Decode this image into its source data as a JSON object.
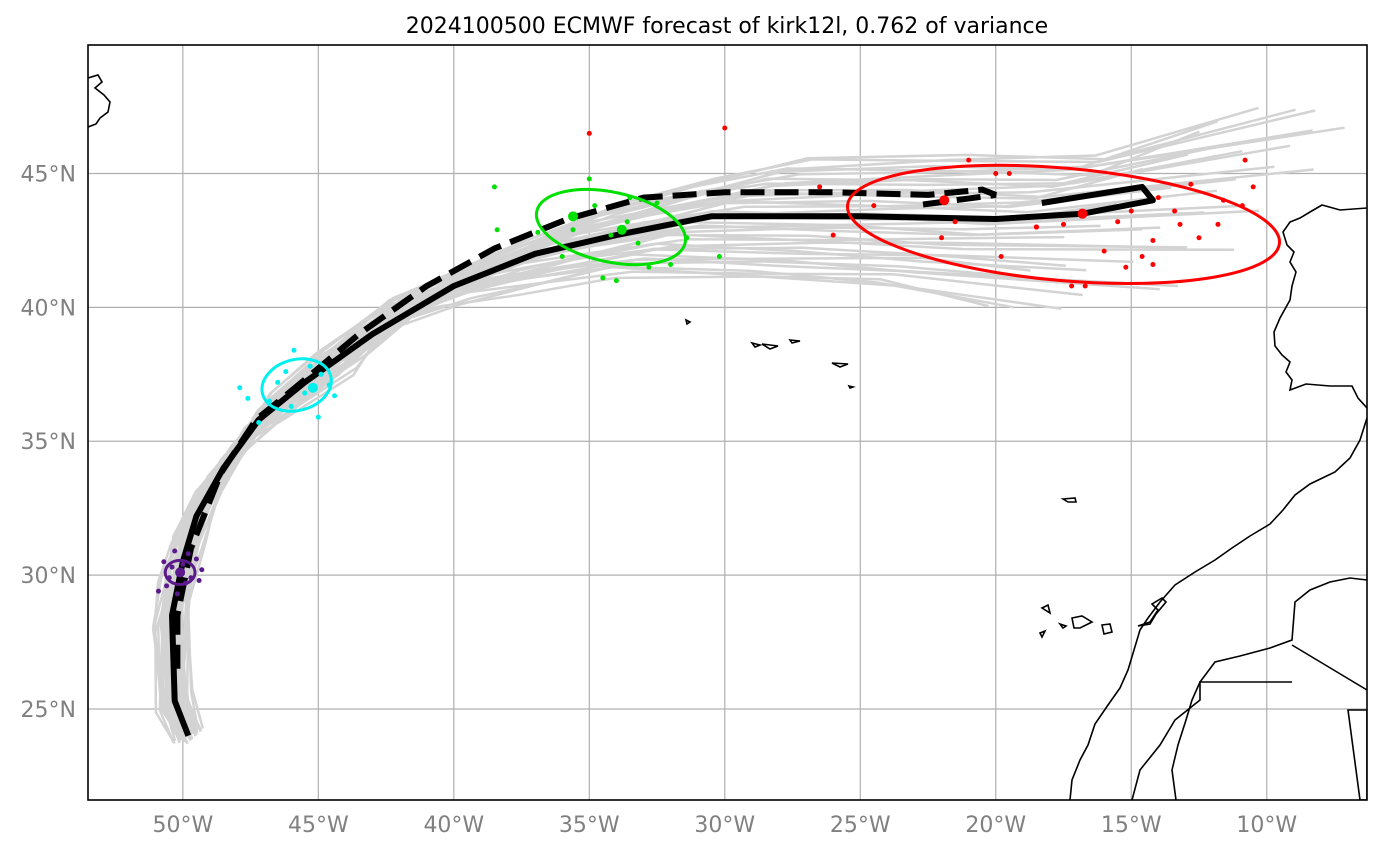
{
  "title": "2024100500 ECMWF forecast of kirk12l, 0.762 of variance",
  "map": {
    "lon_range": [
      -53.5,
      -6.3
    ],
    "lat_range": [
      21.6,
      49.8
    ],
    "lon_ticks": [
      {
        "value": -50,
        "label": "50°W"
      },
      {
        "value": -45,
        "label": "45°W"
      },
      {
        "value": -40,
        "label": "40°W"
      },
      {
        "value": -35,
        "label": "35°W"
      },
      {
        "value": -30,
        "label": "30°W"
      },
      {
        "value": -25,
        "label": "25°W"
      },
      {
        "value": -20,
        "label": "20°W"
      },
      {
        "value": -15,
        "label": "15°W"
      },
      {
        "value": -10,
        "label": "10°W"
      }
    ],
    "lat_ticks": [
      {
        "value": 45,
        "label": "45°N"
      },
      {
        "value": 40,
        "label": "40°N"
      },
      {
        "value": 35,
        "label": "35°N"
      },
      {
        "value": 30,
        "label": "30°N"
      },
      {
        "value": 25,
        "label": "25°N"
      }
    ],
    "colors": {
      "ensemble": "#d3d3d3",
      "t0": "#5a1a8c",
      "t1": "#00f0f0",
      "t2": "#00e000",
      "t3": "#ff0000",
      "track": "#000000"
    },
    "main_track": [
      [
        -49.8,
        24.0
      ],
      [
        -50.3,
        25.3
      ],
      [
        -50.4,
        28.5
      ],
      [
        -50.0,
        30.5
      ],
      [
        -49.5,
        32.2
      ],
      [
        -48.5,
        34.0
      ],
      [
        -47.2,
        35.8
      ],
      [
        -45.5,
        37.2
      ],
      [
        -43.0,
        39.0
      ],
      [
        -40.0,
        40.8
      ],
      [
        -37.0,
        42.0
      ],
      [
        -34.0,
        42.7
      ],
      [
        -30.5,
        43.4
      ],
      [
        -25.0,
        43.4
      ],
      [
        -20.0,
        43.3
      ],
      [
        -16.8,
        43.5
      ],
      [
        -14.2,
        44.0
      ],
      [
        -14.6,
        44.5
      ],
      [
        -18.3,
        43.9
      ]
    ],
    "mean_track": [
      [
        -50.2,
        26.5
      ],
      [
        -50.2,
        28.5
      ],
      [
        -49.7,
        31.0
      ],
      [
        -48.6,
        33.8
      ],
      [
        -47.3,
        35.8
      ],
      [
        -45.5,
        37.3
      ],
      [
        -43.5,
        39.0
      ],
      [
        -41.0,
        40.8
      ],
      [
        -38.5,
        42.2
      ],
      [
        -35.8,
        43.3
      ],
      [
        -33.0,
        44.1
      ],
      [
        -30.0,
        44.3
      ],
      [
        -26.0,
        44.3
      ],
      [
        -22.5,
        44.2
      ],
      [
        -20.5,
        44.4
      ],
      [
        -20.0,
        44.2
      ],
      [
        -23.0,
        43.8
      ]
    ],
    "ellipses": [
      {
        "lon": -50.1,
        "lat": 30.1,
        "rx": 0.55,
        "ry": 0.45,
        "angle": 0,
        "color": "#5a1a8c"
      },
      {
        "lon": -45.8,
        "lat": 37.1,
        "rx": 1.3,
        "ry": 0.95,
        "angle": -15,
        "color": "#00f0f0"
      },
      {
        "lon": -34.2,
        "lat": 43.0,
        "rx": 2.8,
        "ry": 1.3,
        "angle": 12,
        "color": "#00e000"
      },
      {
        "lon": -17.5,
        "lat": 43.1,
        "rx": 8.0,
        "ry": 2.1,
        "angle": 5,
        "color": "#ff0000"
      }
    ],
    "markers": [
      {
        "lon": -50.1,
        "lat": 30.1,
        "color": "#5a1a8c"
      },
      {
        "lon": -45.2,
        "lat": 37.0,
        "color": "#00f0f0"
      },
      {
        "lon": -35.6,
        "lat": 43.4,
        "color": "#00e000"
      },
      {
        "lon": -33.8,
        "lat": 42.9,
        "color": "#00e000"
      },
      {
        "lon": -21.9,
        "lat": 44.0,
        "color": "#ff0000"
      },
      {
        "lon": -16.8,
        "lat": 43.5,
        "color": "#ff0000"
      }
    ],
    "scatter": {
      "t0": [
        [
          -50.4,
          30.3
        ],
        [
          -49.7,
          29.9
        ],
        [
          -50.6,
          29.6
        ],
        [
          -49.5,
          30.6
        ],
        [
          -50.9,
          29.4
        ],
        [
          -49.8,
          30.8
        ],
        [
          -50.2,
          29.3
        ],
        [
          -49.3,
          30.2
        ],
        [
          -50.7,
          30.5
        ],
        [
          -49.9,
          29.7
        ],
        [
          -50.3,
          30.9
        ],
        [
          -49.4,
          29.8
        ],
        [
          -50.5,
          29.9
        ],
        [
          -50.0,
          30.4
        ]
      ],
      "t1": [
        [
          -47.9,
          37.0
        ],
        [
          -47.2,
          35.7
        ],
        [
          -46.8,
          36.5
        ],
        [
          -45.9,
          38.4
        ],
        [
          -45.0,
          35.9
        ],
        [
          -44.4,
          36.7
        ],
        [
          -46.2,
          37.6
        ],
        [
          -45.5,
          36.8
        ],
        [
          -46.5,
          37.2
        ],
        [
          -44.9,
          37.5
        ],
        [
          -47.6,
          36.6
        ],
        [
          -45.3,
          37.8
        ],
        [
          -46.0,
          36.3
        ],
        [
          -44.6,
          37.1
        ]
      ],
      "t2": [
        [
          -38.5,
          44.5
        ],
        [
          -35.0,
          44.8
        ],
        [
          -38.4,
          42.9
        ],
        [
          -36.0,
          41.9
        ],
        [
          -34.5,
          41.1
        ],
        [
          -34.0,
          41.0
        ],
        [
          -32.0,
          41.6
        ],
        [
          -30.2,
          41.9
        ],
        [
          -32.5,
          43.9
        ],
        [
          -33.5,
          44.1
        ],
        [
          -35.6,
          42.9
        ],
        [
          -34.8,
          43.8
        ],
        [
          -33.2,
          42.4
        ],
        [
          -32.8,
          41.5
        ],
        [
          -33.6,
          43.2
        ],
        [
          -34.2,
          42.7
        ],
        [
          -31.4,
          42.6
        ],
        [
          -36.9,
          42.8
        ]
      ],
      "t3": [
        [
          -35.0,
          46.5
        ],
        [
          -30.0,
          46.7
        ],
        [
          -26.5,
          44.5
        ],
        [
          -26.0,
          42.7
        ],
        [
          -24.5,
          43.8
        ],
        [
          -21.0,
          45.5
        ],
        [
          -20.0,
          45.0
        ],
        [
          -19.5,
          45.0
        ],
        [
          -19.8,
          41.9
        ],
        [
          -18.5,
          43.0
        ],
        [
          -17.2,
          40.8
        ],
        [
          -16.0,
          42.1
        ],
        [
          -15.2,
          41.5
        ],
        [
          -14.6,
          41.9
        ],
        [
          -14.2,
          42.5
        ],
        [
          -13.4,
          43.6
        ],
        [
          -13.2,
          43.1
        ],
        [
          -12.8,
          44.6
        ],
        [
          -12.5,
          42.6
        ],
        [
          -11.8,
          43.1
        ],
        [
          -11.6,
          44.0
        ],
        [
          -10.8,
          45.5
        ],
        [
          -10.5,
          44.5
        ],
        [
          -10.9,
          43.8
        ],
        [
          -15.0,
          43.6
        ],
        [
          -15.5,
          43.2
        ],
        [
          -17.5,
          43.1
        ],
        [
          -18.5,
          43.0
        ],
        [
          -14.2,
          41.6
        ],
        [
          -22.0,
          42.6
        ],
        [
          -21.5,
          43.2
        ],
        [
          -16.7,
          40.8
        ],
        [
          -14.0,
          44.1
        ]
      ]
    }
  }
}
